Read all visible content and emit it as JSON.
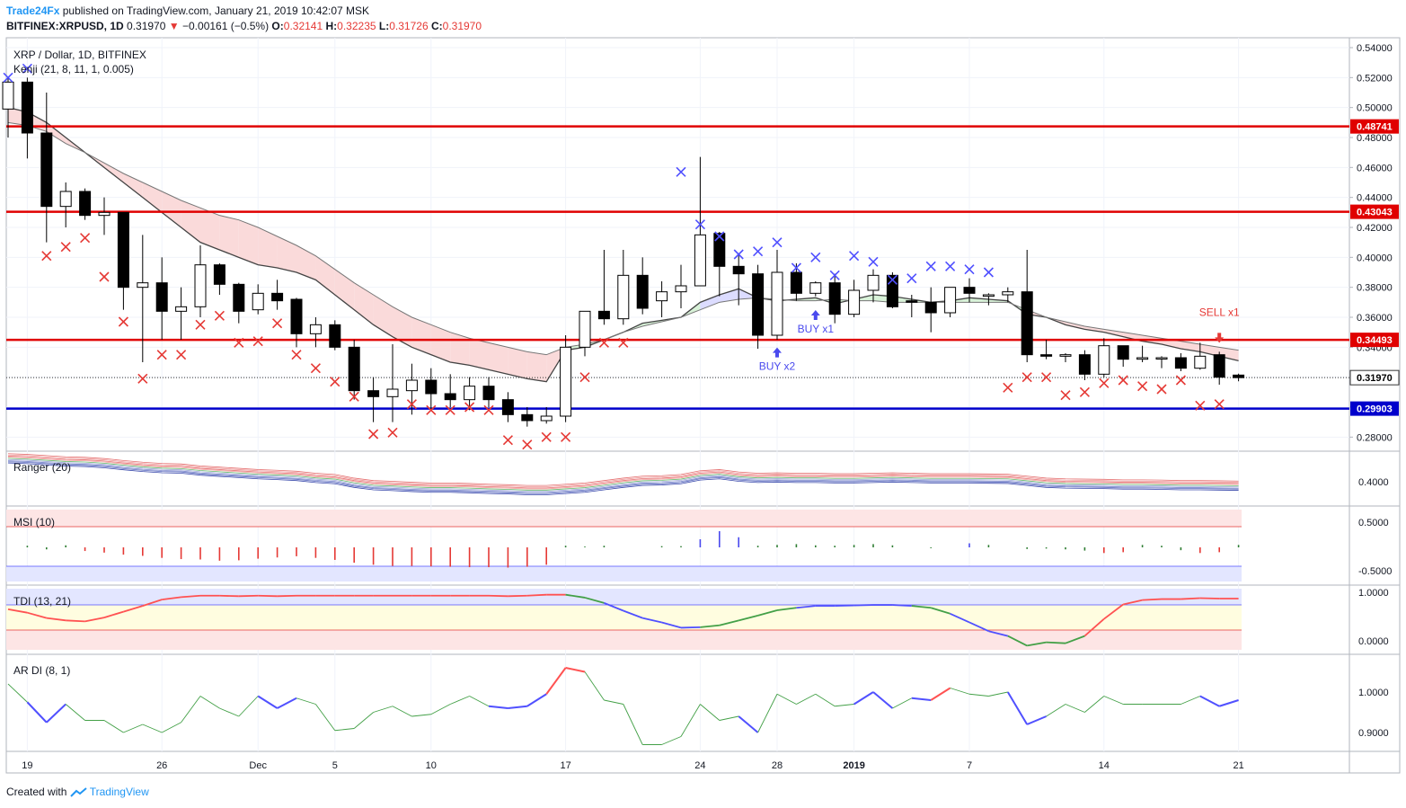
{
  "header": {
    "publisher": "Trade24Fx",
    "published_text": "published on TradingView.com, January 21, 2019 10:42:07 MSK",
    "symbol": "BITFINEX:XRPUSD, 1D",
    "last": "0.31970",
    "change": "−0.00161 (−0.5%)",
    "o_label": "O:",
    "o": "0.32141",
    "h_label": "H:",
    "h": "0.32235",
    "l_label": "L:",
    "l": "0.31726",
    "c_label": "C:",
    "c": "0.31970"
  },
  "pane_labels": {
    "main_title": "XRP / Dollar, 1D, BITFINEX",
    "kenji": "Kenji (21, 8, 11, 1, 0.005)",
    "ranger": "Ranger (20)",
    "msi": "MSI (10)",
    "tdi": "TDI (13, 21)",
    "ardi": "AR DI (8, 1)"
  },
  "footer": {
    "created_with": "Created with",
    "brand": "TradingView"
  },
  "colors": {
    "up": "#ffffff",
    "down": "#000000",
    "level_red": "#e00000",
    "level_blue": "#0000cc",
    "cross_red": "#e53935",
    "cross_blue": "#5050ff",
    "kenji_fill_down": "#fadada",
    "kenji_fill_up": "#d8f2d8",
    "kenji_fill_blue": "#dcdcff"
  },
  "chart_data": [
    {
      "type": "candlestick",
      "title": "XRP / Dollar, 1D, BITFINEX",
      "ylim": [
        0.27,
        0.545
      ],
      "y_ticks": [
        "0.54000",
        "0.52000",
        "0.50000",
        "0.48000",
        "0.46000",
        "0.44000",
        "0.42000",
        "0.40000",
        "0.38000",
        "0.36000",
        "0.34000",
        "0.32000",
        "0.30000",
        "0.28000"
      ],
      "x_tick_labels": [
        {
          "i": 1,
          "label": "19"
        },
        {
          "i": 8,
          "label": "26"
        },
        {
          "i": 13,
          "label": "Dec"
        },
        {
          "i": 17,
          "label": "5"
        },
        {
          "i": 22,
          "label": "10"
        },
        {
          "i": 29,
          "label": "17"
        },
        {
          "i": 36,
          "label": "24"
        },
        {
          "i": 40,
          "label": "28"
        },
        {
          "i": 44,
          "label": "2019"
        },
        {
          "i": 50,
          "label": "7"
        },
        {
          "i": 57,
          "label": "14"
        },
        {
          "i": 64,
          "label": "21"
        }
      ],
      "ohlc": [
        [
          0.499,
          0.52,
          0.48,
          0.517
        ],
        [
          0.517,
          0.52,
          0.466,
          0.483
        ],
        [
          0.483,
          0.51,
          0.41,
          0.434
        ],
        [
          0.434,
          0.45,
          0.42,
          0.444
        ],
        [
          0.444,
          0.446,
          0.425,
          0.428
        ],
        [
          0.428,
          0.44,
          0.415,
          0.43
        ],
        [
          0.43,
          0.43,
          0.365,
          0.38
        ],
        [
          0.38,
          0.415,
          0.33,
          0.383
        ],
        [
          0.383,
          0.4,
          0.345,
          0.364
        ],
        [
          0.364,
          0.38,
          0.345,
          0.367
        ],
        [
          0.367,
          0.408,
          0.36,
          0.395
        ],
        [
          0.395,
          0.396,
          0.375,
          0.382
        ],
        [
          0.382,
          0.383,
          0.356,
          0.364
        ],
        [
          0.365,
          0.382,
          0.362,
          0.376
        ],
        [
          0.376,
          0.385,
          0.365,
          0.371
        ],
        [
          0.372,
          0.373,
          0.34,
          0.349
        ],
        [
          0.349,
          0.36,
          0.34,
          0.355
        ],
        [
          0.355,
          0.358,
          0.338,
          0.34
        ],
        [
          0.34,
          0.345,
          0.305,
          0.311
        ],
        [
          0.311,
          0.32,
          0.29,
          0.307
        ],
        [
          0.307,
          0.342,
          0.29,
          0.312
        ],
        [
          0.311,
          0.329,
          0.295,
          0.318
        ],
        [
          0.318,
          0.326,
          0.298,
          0.309
        ],
        [
          0.309,
          0.322,
          0.3,
          0.305
        ],
        [
          0.305,
          0.32,
          0.298,
          0.314
        ],
        [
          0.314,
          0.32,
          0.3,
          0.305
        ],
        [
          0.305,
          0.31,
          0.29,
          0.295
        ],
        [
          0.295,
          0.3,
          0.287,
          0.291
        ],
        [
          0.291,
          0.3,
          0.289,
          0.294
        ],
        [
          0.294,
          0.348,
          0.29,
          0.34
        ],
        [
          0.34,
          0.362,
          0.334,
          0.364
        ],
        [
          0.364,
          0.405,
          0.355,
          0.359
        ],
        [
          0.359,
          0.405,
          0.355,
          0.388
        ],
        [
          0.388,
          0.4,
          0.362,
          0.366
        ],
        [
          0.371,
          0.384,
          0.36,
          0.377
        ],
        [
          0.377,
          0.395,
          0.366,
          0.381
        ],
        [
          0.381,
          0.467,
          0.381,
          0.415
        ],
        [
          0.416,
          0.417,
          0.374,
          0.394
        ],
        [
          0.394,
          0.402,
          0.368,
          0.389
        ],
        [
          0.389,
          0.395,
          0.339,
          0.348
        ],
        [
          0.348,
          0.405,
          0.345,
          0.39
        ],
        [
          0.39,
          0.396,
          0.371,
          0.376
        ],
        [
          0.376,
          0.384,
          0.374,
          0.383
        ],
        [
          0.383,
          0.389,
          0.356,
          0.362
        ],
        [
          0.362,
          0.385,
          0.36,
          0.378
        ],
        [
          0.378,
          0.392,
          0.37,
          0.388
        ],
        [
          0.388,
          0.39,
          0.366,
          0.367
        ],
        [
          0.371,
          0.375,
          0.36,
          0.37
        ],
        [
          0.37,
          0.38,
          0.35,
          0.363
        ],
        [
          0.363,
          0.38,
          0.36,
          0.38
        ],
        [
          0.38,
          0.386,
          0.37,
          0.376
        ],
        [
          0.374,
          0.376,
          0.368,
          0.375
        ],
        [
          0.375,
          0.38,
          0.37,
          0.377
        ],
        [
          0.377,
          0.405,
          0.33,
          0.335
        ],
        [
          0.335,
          0.345,
          0.332,
          0.334
        ],
        [
          0.334,
          0.336,
          0.33,
          0.335
        ],
        [
          0.335,
          0.338,
          0.318,
          0.322
        ],
        [
          0.322,
          0.346,
          0.32,
          0.341
        ],
        [
          0.341,
          0.341,
          0.327,
          0.332
        ],
        [
          0.332,
          0.341,
          0.33,
          0.333
        ],
        [
          0.333,
          0.334,
          0.326,
          0.333
        ],
        [
          0.333,
          0.336,
          0.324,
          0.326
        ],
        [
          0.326,
          0.343,
          0.325,
          0.334
        ],
        [
          0.335,
          0.337,
          0.315,
          0.32
        ],
        [
          0.32141,
          0.32235,
          0.31726,
          0.3197
        ]
      ],
      "levels": [
        {
          "value": 0.48741,
          "label": "0.48741",
          "color": "#e00000"
        },
        {
          "value": 0.43043,
          "label": "0.43043",
          "color": "#e00000"
        },
        {
          "value": 0.34493,
          "label": "0.34493",
          "color": "#e00000"
        },
        {
          "value": 0.29903,
          "label": "0.29903",
          "color": "#0000cc"
        }
      ],
      "last_price": {
        "value": 0.3197,
        "label": "0.31970"
      },
      "kenji_line_a": [
        0.5,
        0.497,
        0.49,
        0.48,
        0.47,
        0.46,
        0.45,
        0.44,
        0.43,
        0.42,
        0.41,
        0.405,
        0.4,
        0.395,
        0.393,
        0.39,
        0.385,
        0.375,
        0.365,
        0.355,
        0.347,
        0.34,
        0.335,
        0.33,
        0.328,
        0.325,
        0.322,
        0.319,
        0.317,
        0.338,
        0.34,
        0.345,
        0.35,
        0.356,
        0.358,
        0.36,
        0.37,
        0.375,
        0.379,
        0.373,
        0.371,
        0.372,
        0.373,
        0.369,
        0.372,
        0.375,
        0.374,
        0.372,
        0.37,
        0.371,
        0.373,
        0.372,
        0.371,
        0.362,
        0.36,
        0.355,
        0.352,
        0.35,
        0.347,
        0.344,
        0.342,
        0.339,
        0.337,
        0.334,
        0.331
      ],
      "kenji_line_b": [
        0.49,
        0.488,
        0.484,
        0.476,
        0.47,
        0.463,
        0.456,
        0.45,
        0.444,
        0.438,
        0.433,
        0.428,
        0.425,
        0.42,
        0.414,
        0.408,
        0.401,
        0.392,
        0.383,
        0.375,
        0.367,
        0.36,
        0.355,
        0.35,
        0.346,
        0.343,
        0.34,
        0.337,
        0.335,
        0.34,
        0.342,
        0.345,
        0.35,
        0.354,
        0.357,
        0.36,
        0.365,
        0.37,
        0.372,
        0.373,
        0.372,
        0.371,
        0.371,
        0.372,
        0.371,
        0.371,
        0.37,
        0.37,
        0.37,
        0.37,
        0.37,
        0.37,
        0.37,
        0.365,
        0.36,
        0.357,
        0.354,
        0.352,
        0.35,
        0.348,
        0.346,
        0.344,
        0.342,
        0.34,
        0.338
      ],
      "crosses_red": [
        [
          2,
          0.401
        ],
        [
          3,
          0.407
        ],
        [
          4,
          0.413
        ],
        [
          5,
          0.387
        ],
        [
          6,
          0.357
        ],
        [
          7,
          0.319
        ],
        [
          8,
          0.335
        ],
        [
          9,
          0.335
        ],
        [
          10,
          0.355
        ],
        [
          11,
          0.361
        ],
        [
          12,
          0.343
        ],
        [
          13,
          0.344
        ],
        [
          14,
          0.356
        ],
        [
          15,
          0.335
        ],
        [
          16,
          0.326
        ],
        [
          17,
          0.317
        ],
        [
          18,
          0.307
        ],
        [
          19,
          0.282
        ],
        [
          20,
          0.283
        ],
        [
          21,
          0.302
        ],
        [
          22,
          0.298
        ],
        [
          23,
          0.298
        ],
        [
          24,
          0.3
        ],
        [
          25,
          0.298
        ],
        [
          26,
          0.278
        ],
        [
          27,
          0.275
        ],
        [
          28,
          0.28
        ],
        [
          29,
          0.28
        ],
        [
          30,
          0.32
        ],
        [
          31,
          0.343
        ],
        [
          32,
          0.343
        ],
        [
          52,
          0.313
        ],
        [
          53,
          0.32
        ],
        [
          54,
          0.32
        ],
        [
          55,
          0.308
        ],
        [
          56,
          0.31
        ],
        [
          57,
          0.316
        ],
        [
          58,
          0.318
        ],
        [
          59,
          0.314
        ],
        [
          60,
          0.312
        ],
        [
          61,
          0.318
        ],
        [
          62,
          0.301
        ],
        [
          63,
          0.302
        ]
      ],
      "crosses_blue": [
        [
          0,
          0.52
        ],
        [
          1,
          0.526
        ],
        [
          35,
          0.457
        ],
        [
          36,
          0.422
        ],
        [
          37,
          0.414
        ],
        [
          38,
          0.402
        ],
        [
          39,
          0.404
        ],
        [
          40,
          0.41
        ],
        [
          41,
          0.393
        ],
        [
          42,
          0.4
        ],
        [
          43,
          0.388
        ],
        [
          44,
          0.401
        ],
        [
          45,
          0.397
        ],
        [
          46,
          0.385
        ],
        [
          47,
          0.386
        ],
        [
          48,
          0.394
        ],
        [
          49,
          0.394
        ],
        [
          50,
          0.392
        ],
        [
          51,
          0.39
        ]
      ],
      "annotations": [
        {
          "i": 40,
          "value": 0.335,
          "label": "BUY x2",
          "arrow": "up"
        },
        {
          "i": 42,
          "value": 0.36,
          "label": "BUY x1",
          "arrow": "up"
        },
        {
          "i": 63,
          "value": 0.358,
          "label": "SELL x1",
          "arrow": "down"
        }
      ]
    },
    {
      "type": "line",
      "title": "Ranger (20)",
      "y_ticks": [
        "0.4000"
      ],
      "ylim": [
        0.29,
        0.47
      ],
      "center": [
        0.46,
        0.457,
        0.452,
        0.447,
        0.445,
        0.44,
        0.432,
        0.425,
        0.42,
        0.418,
        0.41,
        0.405,
        0.4,
        0.395,
        0.392,
        0.388,
        0.38,
        0.375,
        0.36,
        0.35,
        0.347,
        0.343,
        0.34,
        0.34,
        0.338,
        0.335,
        0.333,
        0.33,
        0.33,
        0.335,
        0.34,
        0.35,
        0.36,
        0.368,
        0.37,
        0.375,
        0.39,
        0.395,
        0.385,
        0.38,
        0.382,
        0.38,
        0.38,
        0.378,
        0.378,
        0.38,
        0.382,
        0.38,
        0.378,
        0.378,
        0.378,
        0.377,
        0.376,
        0.368,
        0.36,
        0.357,
        0.356,
        0.355,
        0.353,
        0.353,
        0.352,
        0.35,
        0.35,
        0.349,
        0.348
      ]
    },
    {
      "type": "bar",
      "title": "MSI (10)",
      "y_ticks": [
        "0.5000",
        "-0.5000"
      ],
      "ylim": [
        -0.8,
        0.8
      ],
      "values": [
        0,
        0.04,
        -0.05,
        0.05,
        -0.09,
        -0.13,
        -0.18,
        -0.21,
        -0.26,
        -0.29,
        -0.3,
        -0.33,
        -0.32,
        -0.28,
        -0.25,
        -0.22,
        -0.26,
        -0.31,
        -0.38,
        -0.43,
        -0.46,
        -0.46,
        -0.47,
        -0.48,
        -0.49,
        -0.49,
        -0.5,
        -0.48,
        -0.43,
        0.04,
        0.02,
        0.04,
        0,
        0,
        0.03,
        0.03,
        0.2,
        0.4,
        0.25,
        0.04,
        0.06,
        0.08,
        0.05,
        0.04,
        0.06,
        0.08,
        0.05,
        0,
        -0.02,
        0,
        0.1,
        0.06,
        0,
        -0.04,
        -0.03,
        -0.05,
        -0.08,
        -0.14,
        -0.12,
        0.06,
        0.04,
        -0.07,
        -0.14,
        -0.12,
        0.06
      ],
      "colors_pos": "#4a4aee",
      "colors_neg": "#e53935",
      "colors_small": "#2e7d32"
    },
    {
      "type": "line",
      "title": "TDI (13, 21)",
      "y_ticks": [
        "1.0000",
        "0.0000"
      ],
      "ylim": [
        -0.2,
        1.1
      ],
      "values": [
        0.65,
        0.58,
        0.47,
        0.42,
        0.4,
        0.48,
        0.6,
        0.72,
        0.85,
        0.9,
        0.93,
        0.93,
        0.92,
        0.93,
        0.92,
        0.93,
        0.93,
        0.93,
        0.93,
        0.93,
        0.93,
        0.93,
        0.93,
        0.93,
        0.93,
        0.93,
        0.92,
        0.93,
        0.95,
        0.95,
        0.89,
        0.78,
        0.62,
        0.47,
        0.38,
        0.27,
        0.28,
        0.32,
        0.42,
        0.52,
        0.63,
        0.68,
        0.72,
        0.72,
        0.73,
        0.74,
        0.74,
        0.72,
        0.68,
        0.56,
        0.38,
        0.2,
        0.1,
        -0.1,
        -0.03,
        -0.05,
        0.1,
        0.45,
        0.75,
        0.84,
        0.86,
        0.86,
        0.88,
        0.87,
        0.87
      ]
    },
    {
      "type": "line",
      "title": "AR DI (8, 1)",
      "y_ticks": [
        "1.0000",
        "0.9000"
      ],
      "ylim": [
        0.85,
        1.08
      ],
      "values": [
        1.02,
        0.975,
        0.925,
        0.97,
        0.93,
        0.93,
        0.9,
        0.92,
        0.9,
        0.925,
        0.99,
        0.96,
        0.94,
        0.99,
        0.96,
        0.985,
        0.97,
        0.905,
        0.91,
        0.95,
        0.965,
        0.94,
        0.945,
        0.97,
        0.99,
        0.965,
        0.96,
        0.965,
        0.995,
        1.06,
        1.05,
        0.98,
        0.97,
        0.87,
        0.87,
        0.89,
        0.97,
        0.93,
        0.94,
        0.9,
        0.995,
        0.97,
        0.995,
        0.965,
        0.97,
        1.0,
        0.96,
        0.985,
        0.98,
        1.01,
        0.995,
        0.99,
        1.0,
        0.92,
        0.94,
        0.97,
        0.95,
        0.99,
        0.97,
        0.97,
        0.97,
        0.97,
        0.99,
        0.965,
        0.98
      ]
    }
  ]
}
